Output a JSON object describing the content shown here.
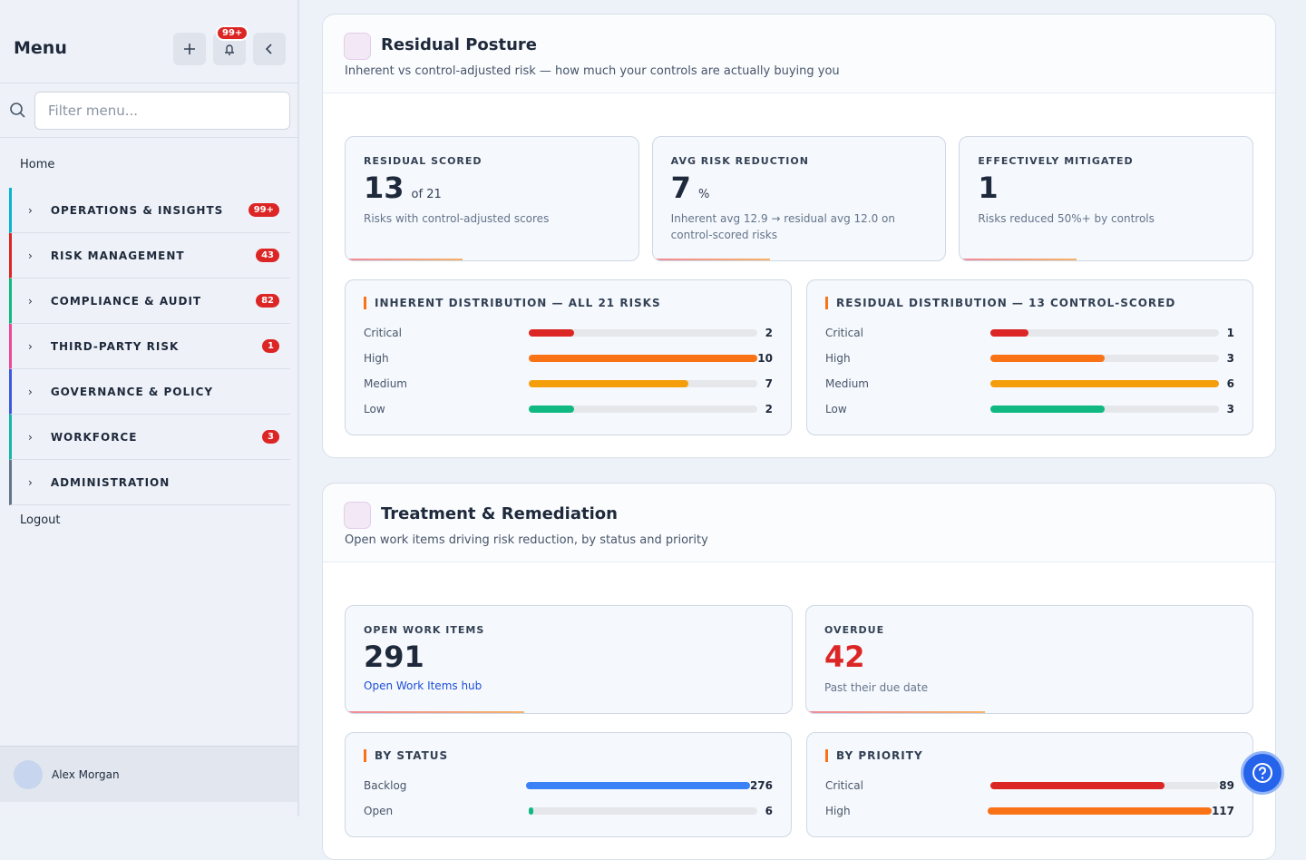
{
  "sidebar": {
    "title": "Menu",
    "notification_badge": "99+",
    "search_placeholder": "Filter menu...",
    "home": "Home",
    "sections": [
      {
        "label": "OPERATIONS & INSIGHTS",
        "badge": "99+",
        "color": "#06b6d4"
      },
      {
        "label": "RISK MANAGEMENT",
        "badge": "43",
        "color": "#dc2626"
      },
      {
        "label": "COMPLIANCE & AUDIT",
        "badge": "82",
        "color": "#10b981"
      },
      {
        "label": "THIRD-PARTY RISK",
        "badge": "1",
        "color": "#ec4899"
      },
      {
        "label": "GOVERNANCE & POLICY",
        "color": "#3b5bdb"
      },
      {
        "label": "WORKFORCE",
        "badge": "3",
        "color": "#14b8a6"
      },
      {
        "label": "ADMINISTRATION",
        "color": "#64748b"
      }
    ],
    "logout": "Logout",
    "user": "Alex Morgan"
  },
  "panels": [
    {
      "title": "Residual Posture",
      "subtitle": "Inherent vs control-adjusted risk — how much your controls are actually buying you",
      "stats": [
        {
          "label": "RESIDUAL SCORED",
          "value": "13",
          "suffix": "of 21",
          "note": "Risks with control-adjusted scores"
        },
        {
          "label": "AVG RISK REDUCTION",
          "value": "7",
          "suffix": "%",
          "note": "Inherent avg 12.9 → residual avg 12.0 on control-scored risks"
        },
        {
          "label": "EFFECTIVELY MITIGATED",
          "value": "1",
          "note": "Risks reduced 50%+ by controls"
        }
      ],
      "distributions": [
        {
          "title": "INHERENT DISTRIBUTION — ALL 21 RISKS",
          "rows": [
            {
              "label": "Critical",
              "value": 2,
              "color": "#dc2626"
            },
            {
              "label": "High",
              "value": 10,
              "color": "#f97316"
            },
            {
              "label": "Medium",
              "value": 7,
              "color": "#f59e0b"
            },
            {
              "label": "Low",
              "value": 2,
              "color": "#10b981"
            }
          ]
        },
        {
          "title": "RESIDUAL DISTRIBUTION — 13 CONTROL-SCORED",
          "rows": [
            {
              "label": "Critical",
              "value": 1,
              "color": "#dc2626"
            },
            {
              "label": "High",
              "value": 3,
              "color": "#f97316"
            },
            {
              "label": "Medium",
              "value": 6,
              "color": "#f59e0b"
            },
            {
              "label": "Low",
              "value": 3,
              "color": "#10b981"
            }
          ]
        }
      ]
    },
    {
      "title": "Treatment & Remediation",
      "subtitle": "Open work items driving risk reduction, by status and priority",
      "stats": [
        {
          "label": "OPEN WORK ITEMS",
          "value": "291",
          "link": "Open Work Items hub"
        },
        {
          "label": "OVERDUE",
          "value": "42",
          "note": "Past their due date",
          "value_color": "#dc2626"
        }
      ],
      "distributions": [
        {
          "title": "BY STATUS",
          "rows": [
            {
              "label": "Backlog",
              "value": 276,
              "color": "#3b82f6"
            },
            {
              "label": "Open",
              "value": 6,
              "color": "#10b981"
            }
          ]
        },
        {
          "title": "BY PRIORITY",
          "rows": [
            {
              "label": "Critical",
              "value": 89,
              "color": "#dc2626"
            },
            {
              "label": "High",
              "value": 117,
              "color": "#f97316"
            }
          ]
        }
      ]
    }
  ]
}
